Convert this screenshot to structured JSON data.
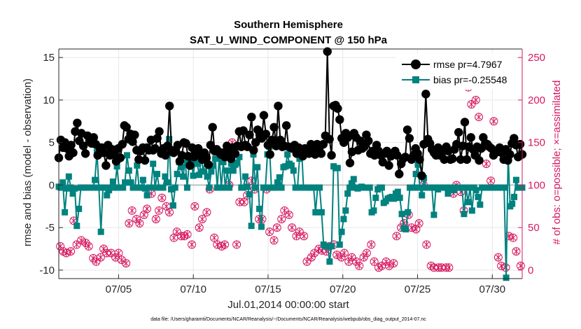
{
  "chart_data": {
    "type": "line",
    "title": "Southern Hemisphere",
    "subtitle": "SAT_U_WIND_COMPONENT @ 150 hPa",
    "xlabel": "Jul.01,2014 00:00:00 start",
    "ylabel": "rmse and bias (model - observation)",
    "ylabel_right": "# of obs: o=possible; ×=assimilated",
    "footnote": "data file: /Users/gharamti/Documents/NCAR/Reanalysis/~/Documents/NCAR/Reanalysis/webpub/obs_diag_output_2014-07.nc",
    "xlim": [
      1,
      32
    ],
    "ylim": [
      -11,
      16
    ],
    "ylim_right": [
      -10,
      260
    ],
    "x_ticks": [
      5,
      10,
      15,
      20,
      25,
      30
    ],
    "x_tick_labels": [
      "07/05",
      "07/10",
      "07/15",
      "07/20",
      "07/25",
      "07/30"
    ],
    "y_ticks": [
      -10,
      -5,
      0,
      5,
      10,
      15
    ],
    "y_tick_labels": [
      "-10",
      "-5",
      "0",
      "5",
      "10",
      "15"
    ],
    "y_ticks_right": [
      0,
      50,
      100,
      150,
      200,
      250
    ],
    "y_tick_labels_right": [
      "0",
      "50",
      "100",
      "150",
      "200",
      "250"
    ],
    "grid": true,
    "legend_position": "top-right",
    "colors": {
      "rmse": "#000000",
      "bias": "#00827f",
      "obs": "#d6185f",
      "zero_line": "#bfbfbf"
    },
    "series": [
      {
        "name": "rmse pr=4.7967",
        "axis": "left",
        "values": [
          3.2,
          5.3,
          4.4,
          5.0,
          4.3,
          3.4,
          4.7,
          3.8,
          6.3,
          7.3,
          5.2,
          6.1,
          4.6,
          3.7,
          5.8,
          5.2,
          4.9,
          5.6,
          4.8,
          3.5,
          4.4,
          4.4,
          3.8,
          2.3,
          4.7,
          3.5,
          4.2,
          3.6,
          2.8,
          4.3,
          3.2,
          4.8,
          7.0,
          6.8,
          5.4,
          6.0,
          5.1,
          5.9,
          4.1,
          3.0,
          4.0,
          4.4,
          2.9,
          4.4,
          4.1,
          5.3,
          4.1,
          4.3,
          5.5,
          6.3,
          3.7,
          4.3,
          3.5,
          4.6,
          9.3,
          4.1,
          3.8,
          4.1,
          4.7,
          2.8,
          3.5,
          5.0,
          4.9,
          3.4,
          2.3,
          4.4,
          3.3,
          3.7,
          4.3,
          3.7,
          3.0,
          3.8,
          3.2,
          2.4,
          4.7,
          6.8,
          4.0,
          4.2,
          3.9,
          3.6,
          3.8,
          3.3,
          4.6,
          3.8,
          3.1,
          4.4,
          3.7,
          4.6,
          6.3,
          4.5,
          6.4,
          4.7,
          4.5,
          5.9,
          8.0,
          4.1,
          5.0,
          6.5,
          5.9,
          5.5,
          8.2,
          6.0,
          4.7,
          3.6,
          5.3,
          6.8,
          4.6,
          9.3,
          5.3,
          4.5,
          4.6,
          7.0,
          4.5,
          4.4,
          4.3,
          4.7,
          3.7,
          4.4,
          3.8,
          3.4,
          4.3,
          4.1,
          3.7,
          4.8,
          4.3,
          3.6,
          4.8,
          4.2,
          3.7,
          4.8,
          5.8,
          15.7,
          5.4,
          3.5,
          9.3,
          9.4,
          9.0,
          7.7,
          5.5,
          5.0,
          6.1,
          5.6,
          2.6,
          3.9,
          6.1,
          5.6,
          4.1,
          5.2,
          4.3,
          4.5,
          5.9,
          5.2,
          3.7,
          4.0,
          3.5,
          4.7,
          4.0,
          3.5,
          2.7,
          3.7,
          4.0,
          2.3,
          3.4,
          3.6,
          4.0,
          3.5,
          1.3,
          2.5,
          3.1,
          3.3,
          6.5,
          5.5,
          3.0,
          3.5,
          4.3,
          3.7,
          3.0,
          1.1,
          4.8,
          10.7,
          5.4,
          4.9,
          4.2,
          3.8,
          3.5,
          4.4,
          3.5,
          4.0,
          3.0,
          4.5,
          4.0,
          3.0,
          3.1,
          4.2,
          4.8,
          6.2,
          3.0,
          4.6,
          7.4,
          3.0,
          4.5,
          5.6,
          4.2,
          3.5,
          4.5,
          2.9,
          4.3,
          5.6,
          4.9,
          4.8,
          4.5,
          4.3,
          3.5,
          4.0,
          3.9,
          4.4,
          3.8,
          3.0,
          4.2,
          2.9,
          3.6,
          4.9,
          5.5,
          4.7,
          3.3,
          4.8,
          3.6
        ]
      },
      {
        "name": "bias pr=-0.25548",
        "axis": "left",
        "values": [
          -0.2,
          -0.3,
          0.3,
          -3.2,
          -0.4,
          1.0,
          -0.3,
          -1.0,
          -0.4,
          -4.8,
          -2.8,
          -0.3,
          -0.3,
          -0.3,
          -0.3,
          -0.3,
          -0.3,
          -0.3,
          0.6,
          3.9,
          -0.3,
          -5.5,
          -0.3,
          -0.3,
          -1.2,
          -0.6,
          -0.3,
          0.4,
          -0.3,
          2.2,
          -0.3,
          -0.3,
          -0.3,
          0.3,
          3.5,
          1.7,
          0.3,
          -0.3,
          -0.3,
          2.3,
          -0.3,
          -0.3,
          0.6,
          -0.4,
          -1.2,
          -0.3,
          -0.3,
          2.5,
          -0.3,
          1.3,
          -0.3,
          -0.3,
          -0.3,
          1.0,
          0.3,
          5.4,
          -0.5,
          -2.4,
          -0.3,
          1.3,
          2.7,
          2.1,
          1.0,
          3.0,
          -0.3,
          2.6,
          3.3,
          1.1,
          2.9,
          2.5,
          1.2,
          3.2,
          1.6,
          3.0,
          1.0,
          -0.3,
          1.6,
          2.3,
          3.1,
          -0.3,
          3.3,
          -0.3,
          2.7,
          -0.3,
          1.7,
          -0.3,
          2.5,
          1.7,
          2.4,
          2.6,
          3.3,
          -0.3,
          -0.3,
          1.0,
          -0.2,
          -1.1,
          -4.8,
          3.6,
          -0.3,
          2.1,
          -2.8,
          -4.9,
          -0.3,
          -0.3,
          3.6,
          4.5,
          -0.3,
          -0.3,
          -0.3,
          0.3,
          0.9,
          -0.3,
          2.1,
          2.2,
          3.6,
          2.5,
          2.3,
          1.7,
          -0.3,
          -0.3,
          3.1,
          4.3,
          -0.3,
          -0.3,
          -0.3,
          -0.3,
          -0.3,
          -0.3,
          -3.2,
          -0.3,
          -0.3,
          -3.2,
          -7.0,
          -7.2,
          -7.2,
          -9.0,
          -7.2,
          2.2,
          2.0,
          2.0,
          -7.0,
          -5.5,
          -4.0,
          -3.0,
          -1.0,
          -0.3,
          0.2,
          0.7,
          -0.3,
          -0.4,
          -0.3,
          -0.2,
          -0.3,
          -0.3,
          -0.3,
          -0.3,
          -3.2,
          -3.0,
          -1.5,
          -0.5,
          -0.3,
          -0.3,
          -2.1,
          -1.9,
          -1.6,
          -1.5,
          -1.4,
          -1.6,
          -1.0,
          -0.8,
          -1.5,
          -3.4,
          -5.1,
          -5.2,
          -3.2,
          -0.3,
          -0.3,
          -0.3,
          1.3,
          2.4,
          -0.3,
          -1.2,
          0.8,
          -0.3,
          -0.3,
          -0.3,
          -0.3,
          -3.5,
          -0.3,
          -0.5,
          -0.3,
          -0.3,
          -0.3,
          -0.3,
          -1.0,
          -0.3,
          -0.3,
          -0.6,
          -0.3,
          -0.3,
          -0.3,
          -0.3,
          -3.4,
          -0.3,
          -2.0,
          -0.3,
          -3.0,
          -0.3,
          -0.6,
          -1.4,
          -2.3,
          -0.3,
          -0.3,
          -0.3,
          -0.3,
          -0.3,
          -0.3,
          -0.3,
          -0.3,
          -0.3,
          -0.3,
          -0.3,
          -0.3,
          -10.9,
          3.6,
          -2.5,
          -2.2,
          -1.4,
          0.6,
          -0.3,
          -0.3,
          -0.3
        ]
      }
    ],
    "obs_possible": [
      [
        1.1,
        28
      ],
      [
        1.3,
        22
      ],
      [
        1.5,
        20
      ],
      [
        1.8,
        22
      ],
      [
        2.0,
        58
      ],
      [
        2.2,
        30
      ],
      [
        2.5,
        35
      ],
      [
        2.8,
        32
      ],
      [
        3.0,
        28
      ],
      [
        3.3,
        14
      ],
      [
        3.5,
        10
      ],
      [
        3.8,
        15
      ],
      [
        4.0,
        25
      ],
      [
        4.2,
        20
      ],
      [
        4.5,
        20
      ],
      [
        4.8,
        15
      ],
      [
        5.0,
        20
      ],
      [
        5.2,
        12
      ],
      [
        5.5,
        8
      ],
      [
        5.7,
        55
      ],
      [
        5.9,
        70
      ],
      [
        6.2,
        60
      ],
      [
        6.4,
        55
      ],
      [
        6.7,
        65
      ],
      [
        6.9,
        72
      ],
      [
        7.2,
        90
      ],
      [
        7.5,
        60
      ],
      [
        7.7,
        70
      ],
      [
        7.9,
        85
      ],
      [
        8.2,
        75
      ],
      [
        8.4,
        68
      ],
      [
        8.7,
        38
      ],
      [
        8.9,
        45
      ],
      [
        9.2,
        40
      ],
      [
        9.4,
        40
      ],
      [
        9.6,
        42
      ],
      [
        9.9,
        30
      ],
      [
        10.1,
        75
      ],
      [
        10.4,
        50
      ],
      [
        10.6,
        60
      ],
      [
        10.9,
        68
      ],
      [
        11.1,
        95
      ],
      [
        11.4,
        38
      ],
      [
        11.6,
        30
      ],
      [
        11.9,
        28
      ],
      [
        12.1,
        30
      ],
      [
        12.4,
        100
      ],
      [
        12.6,
        150
      ],
      [
        12.9,
        30
      ],
      [
        13.1,
        80
      ],
      [
        13.4,
        80
      ],
      [
        13.6,
        88
      ],
      [
        13.9,
        105
      ],
      [
        14.1,
        95
      ],
      [
        14.4,
        60
      ],
      [
        14.6,
        60
      ],
      [
        14.9,
        95
      ],
      [
        15.1,
        45
      ],
      [
        15.4,
        35
      ],
      [
        15.6,
        50
      ],
      [
        15.9,
        60
      ],
      [
        16.1,
        70
      ],
      [
        16.4,
        65
      ],
      [
        16.6,
        50
      ],
      [
        16.9,
        40
      ],
      [
        17.1,
        45
      ],
      [
        17.4,
        40
      ],
      [
        17.6,
        10
      ],
      [
        17.9,
        15
      ],
      [
        18.1,
        20
      ],
      [
        18.4,
        25
      ],
      [
        18.6,
        23
      ],
      [
        18.9,
        22
      ],
      [
        19.1,
        28
      ],
      [
        19.4,
        30
      ],
      [
        19.6,
        18
      ],
      [
        19.9,
        15
      ],
      [
        20.1,
        20
      ],
      [
        20.4,
        10
      ],
      [
        20.6,
        15
      ],
      [
        20.9,
        10
      ],
      [
        21.1,
        5
      ],
      [
        21.4,
        15
      ],
      [
        21.6,
        20
      ],
      [
        21.9,
        30
      ],
      [
        22.1,
        10
      ],
      [
        22.4,
        3
      ],
      [
        22.6,
        5
      ],
      [
        22.9,
        10
      ],
      [
        23.1,
        5
      ],
      [
        23.4,
        8
      ],
      [
        23.6,
        40
      ],
      [
        23.9,
        50
      ],
      [
        24.1,
        55
      ],
      [
        24.4,
        65
      ],
      [
        24.6,
        50
      ],
      [
        24.9,
        48
      ],
      [
        25.1,
        55
      ],
      [
        25.4,
        100
      ],
      [
        25.6,
        30
      ],
      [
        25.9,
        5
      ],
      [
        26.1,
        3
      ],
      [
        26.4,
        3
      ],
      [
        26.6,
        3
      ],
      [
        26.9,
        3
      ],
      [
        27.1,
        3
      ],
      [
        27.4,
        90
      ],
      [
        27.6,
        100
      ],
      [
        27.9,
        92
      ],
      [
        28.1,
        70
      ],
      [
        28.4,
        215
      ],
      [
        28.6,
        195
      ],
      [
        28.9,
        200
      ],
      [
        29.1,
        180
      ],
      [
        29.4,
        145
      ],
      [
        29.6,
        125
      ],
      [
        29.9,
        105
      ],
      [
        30.1,
        175
      ],
      [
        30.4,
        15
      ],
      [
        30.6,
        5
      ],
      [
        30.9,
        3
      ],
      [
        31.1,
        40
      ],
      [
        31.4,
        38
      ],
      [
        31.6,
        22
      ],
      [
        31.9,
        5
      ]
    ]
  }
}
